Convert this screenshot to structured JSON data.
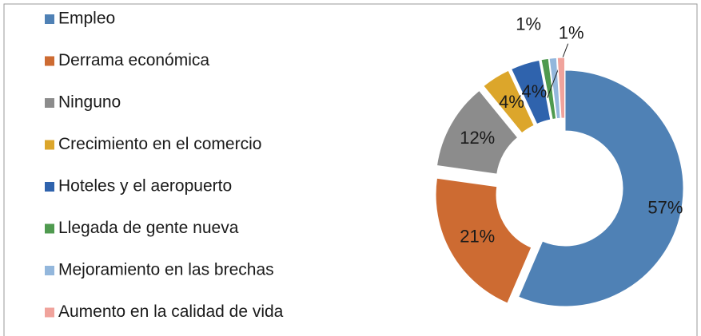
{
  "chart_data": {
    "type": "donut",
    "categories": [
      "Empleo",
      "Derrama económica",
      "Ninguno",
      "Crecimiento en el comercio",
      "Hoteles y el aeropuerto",
      "Llegada de gente nueva",
      "Mejoramiento en las brechas",
      "Aumento en la calidad de vida"
    ],
    "values": [
      57,
      21,
      12,
      4,
      4,
      1,
      1,
      1
    ],
    "value_labels": [
      "57%",
      "21%",
      "12%",
      "4%",
      "4%",
      "1%",
      "1%",
      null
    ],
    "colors": [
      "#4f81b5",
      "#cd6b32",
      "#8c8c8c",
      "#dca62b",
      "#2f63ad",
      "#4f9a4f",
      "#93b7dc",
      "#f0a39c"
    ],
    "legend": "left"
  }
}
